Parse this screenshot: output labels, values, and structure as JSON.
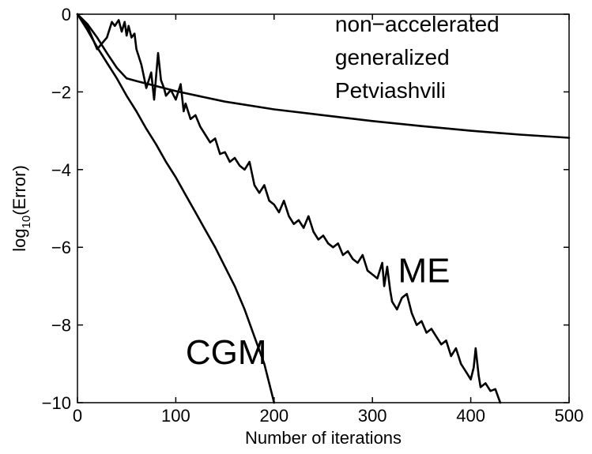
{
  "chart_data": {
    "type": "line",
    "title": "",
    "xlabel": "Number of iterations",
    "ylabel_base": "log",
    "ylabel_sub": "10",
    "ylabel_rest": "(Error)",
    "xlim": [
      0,
      500
    ],
    "ylim": [
      -10,
      0
    ],
    "x_ticks": [
      0,
      100,
      200,
      300,
      400,
      500
    ],
    "y_ticks": [
      0,
      -2,
      -4,
      -6,
      -8,
      -10
    ],
    "x_tick_labels": [
      "0",
      "100",
      "200",
      "300",
      "400",
      "500"
    ],
    "y_tick_labels": [
      "0",
      "−2",
      "−4",
      "−6",
      "−8",
      "−10"
    ],
    "grid": false,
    "annotations": [
      {
        "text": "non−accelerated",
        "x": 262,
        "y": -0.45
      },
      {
        "text": "generalized",
        "x": 262,
        "y": -1.3
      },
      {
        "text": "Petviashvili",
        "x": 262,
        "y": -2.15
      },
      {
        "text": "ME",
        "x": 326,
        "y": -6.9
      },
      {
        "text": "CGM",
        "x": 110,
        "y": -9.0
      }
    ],
    "series": [
      {
        "name": "non-accelerated generalized Petviashvili",
        "x": [
          0,
          10,
          20,
          30,
          40,
          50,
          60,
          80,
          100,
          150,
          200,
          250,
          300,
          350,
          400,
          450,
          500
        ],
        "y": [
          0,
          -0.25,
          -0.6,
          -1.0,
          -1.38,
          -1.65,
          -1.72,
          -1.85,
          -1.98,
          -2.25,
          -2.45,
          -2.6,
          -2.75,
          -2.88,
          -3.0,
          -3.1,
          -3.18
        ]
      },
      {
        "name": "ME",
        "x": [
          0,
          10,
          20,
          30,
          35,
          38,
          42,
          45,
          48,
          50,
          52,
          55,
          58,
          60,
          65,
          70,
          75,
          78,
          80,
          82,
          85,
          88,
          90,
          95,
          100,
          105,
          108,
          110,
          115,
          120,
          125,
          130,
          135,
          140,
          145,
          150,
          155,
          160,
          165,
          170,
          175,
          180,
          185,
          190,
          195,
          200,
          205,
          210,
          215,
          220,
          225,
          230,
          235,
          240,
          245,
          250,
          255,
          260,
          265,
          270,
          275,
          280,
          285,
          290,
          295,
          300,
          305,
          310,
          312,
          315,
          318,
          320,
          325,
          330,
          335,
          340,
          345,
          350,
          355,
          360,
          365,
          370,
          375,
          380,
          385,
          390,
          395,
          400,
          403,
          405,
          408,
          410,
          415,
          420,
          425,
          430
        ],
        "y": [
          0,
          -0.3,
          -0.9,
          -0.6,
          -0.2,
          -0.3,
          -0.15,
          -0.45,
          -0.2,
          -0.55,
          -0.3,
          -0.6,
          -0.5,
          -0.9,
          -1.3,
          -1.9,
          -1.5,
          -2.2,
          -1.6,
          -1.0,
          -1.7,
          -1.9,
          -2.1,
          -1.95,
          -2.2,
          -1.8,
          -2.5,
          -2.3,
          -2.7,
          -2.6,
          -2.9,
          -3.1,
          -3.3,
          -3.2,
          -3.6,
          -3.55,
          -3.8,
          -3.7,
          -3.9,
          -4.0,
          -3.8,
          -4.4,
          -4.6,
          -4.4,
          -4.8,
          -4.9,
          -5.1,
          -4.8,
          -5.2,
          -5.4,
          -5.3,
          -5.5,
          -5.2,
          -5.6,
          -5.8,
          -5.7,
          -5.9,
          -6.0,
          -5.9,
          -6.2,
          -6.1,
          -6.3,
          -6.4,
          -6.2,
          -6.6,
          -6.7,
          -6.8,
          -6.4,
          -7.0,
          -6.5,
          -7.1,
          -7.4,
          -7.6,
          -7.3,
          -7.2,
          -7.7,
          -8.0,
          -7.9,
          -8.2,
          -8.1,
          -8.3,
          -8.5,
          -8.4,
          -8.8,
          -8.6,
          -9.0,
          -9.2,
          -9.4,
          -9.1,
          -8.6,
          -9.3,
          -9.6,
          -9.5,
          -9.7,
          -9.65,
          -10.0
        ]
      },
      {
        "name": "CGM",
        "x": [
          0,
          10,
          20,
          30,
          40,
          50,
          60,
          70,
          80,
          90,
          100,
          110,
          120,
          130,
          140,
          150,
          160,
          170,
          180,
          190,
          200
        ],
        "y": [
          0,
          -0.4,
          -0.85,
          -1.25,
          -1.65,
          -2.1,
          -2.5,
          -2.95,
          -3.35,
          -3.8,
          -4.2,
          -4.65,
          -5.1,
          -5.55,
          -6.0,
          -6.5,
          -7.0,
          -7.6,
          -8.3,
          -9.0,
          -10.0
        ]
      }
    ]
  }
}
